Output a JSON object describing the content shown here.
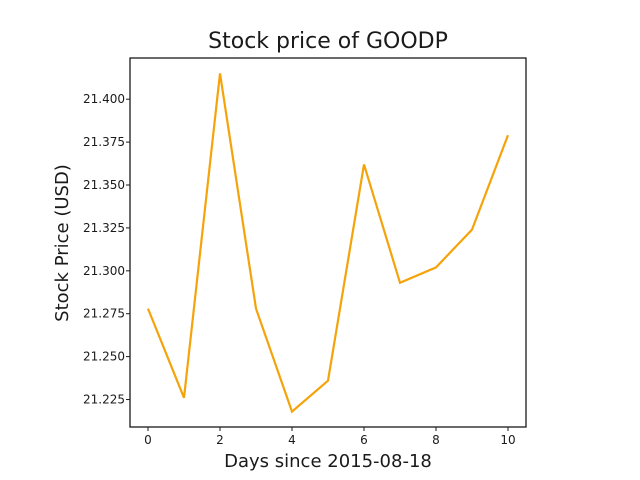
{
  "chart_data": {
    "type": "line",
    "title": "Stock price of GOODP",
    "xlabel": "Days since 2015-08-18",
    "ylabel": "Stock Price (USD)",
    "x": [
      0,
      1,
      2,
      3,
      4,
      5,
      6,
      7,
      8,
      9,
      10
    ],
    "series": [
      {
        "values": [
          21.278,
          21.226,
          21.415,
          21.278,
          21.218,
          21.236,
          21.362,
          21.293,
          21.302,
          21.324,
          21.379
        ],
        "color": "#f5a30b"
      }
    ],
    "xlim": [
      -0.5,
      10.5
    ],
    "ylim": [
      21.209,
      21.424
    ],
    "xticks": [
      "0",
      "2",
      "4",
      "6",
      "8",
      "10"
    ],
    "yticks": [
      "21.225",
      "21.250",
      "21.275",
      "21.300",
      "21.325",
      "21.350",
      "21.375",
      "21.400"
    ],
    "grid": false,
    "legend": "none"
  }
}
